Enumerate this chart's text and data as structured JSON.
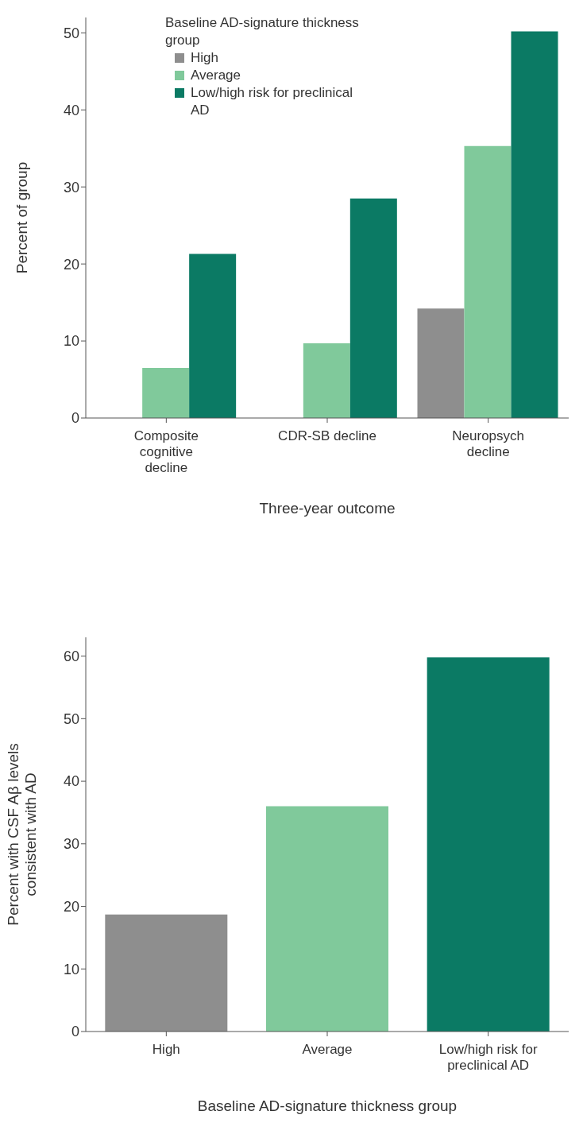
{
  "chart_data": [
    {
      "type": "bar",
      "categories": [
        "Composite cognitive decline",
        "CDR-SB decline",
        "Neuropsych decline"
      ],
      "xlabel": "Three-year outcome",
      "ylabel": "Percent of group",
      "legend_title": "Baseline AD-signature thickness group",
      "legend": "top left",
      "ylim": [
        0,
        52
      ],
      "yticks": [
        0,
        10,
        20,
        30,
        40,
        50
      ],
      "series": [
        {
          "name": "High",
          "color": "#8e8e8e",
          "values": [
            0,
            0,
            14.2
          ]
        },
        {
          "name": "Average",
          "color": "#80c99b",
          "values": [
            6.5,
            9.7,
            35.3
          ]
        },
        {
          "name": "Low/high risk for preclinical AD",
          "color": "#0b7a64",
          "values": [
            21.3,
            28.5,
            50.2
          ]
        }
      ]
    },
    {
      "type": "bar",
      "categories": [
        "High",
        "Average",
        "Low/high risk for preclinical AD"
      ],
      "xlabel": "Baseline AD-signature thickness group",
      "ylabel": "Percent with CSF Aβ levels consistent with AD",
      "ylim": [
        0,
        63
      ],
      "yticks": [
        0,
        10,
        20,
        30,
        40,
        50,
        60
      ],
      "values": [
        18.7,
        36,
        59.8
      ],
      "colors": [
        "#8e8e8e",
        "#80c99b",
        "#0b7a64"
      ]
    }
  ]
}
